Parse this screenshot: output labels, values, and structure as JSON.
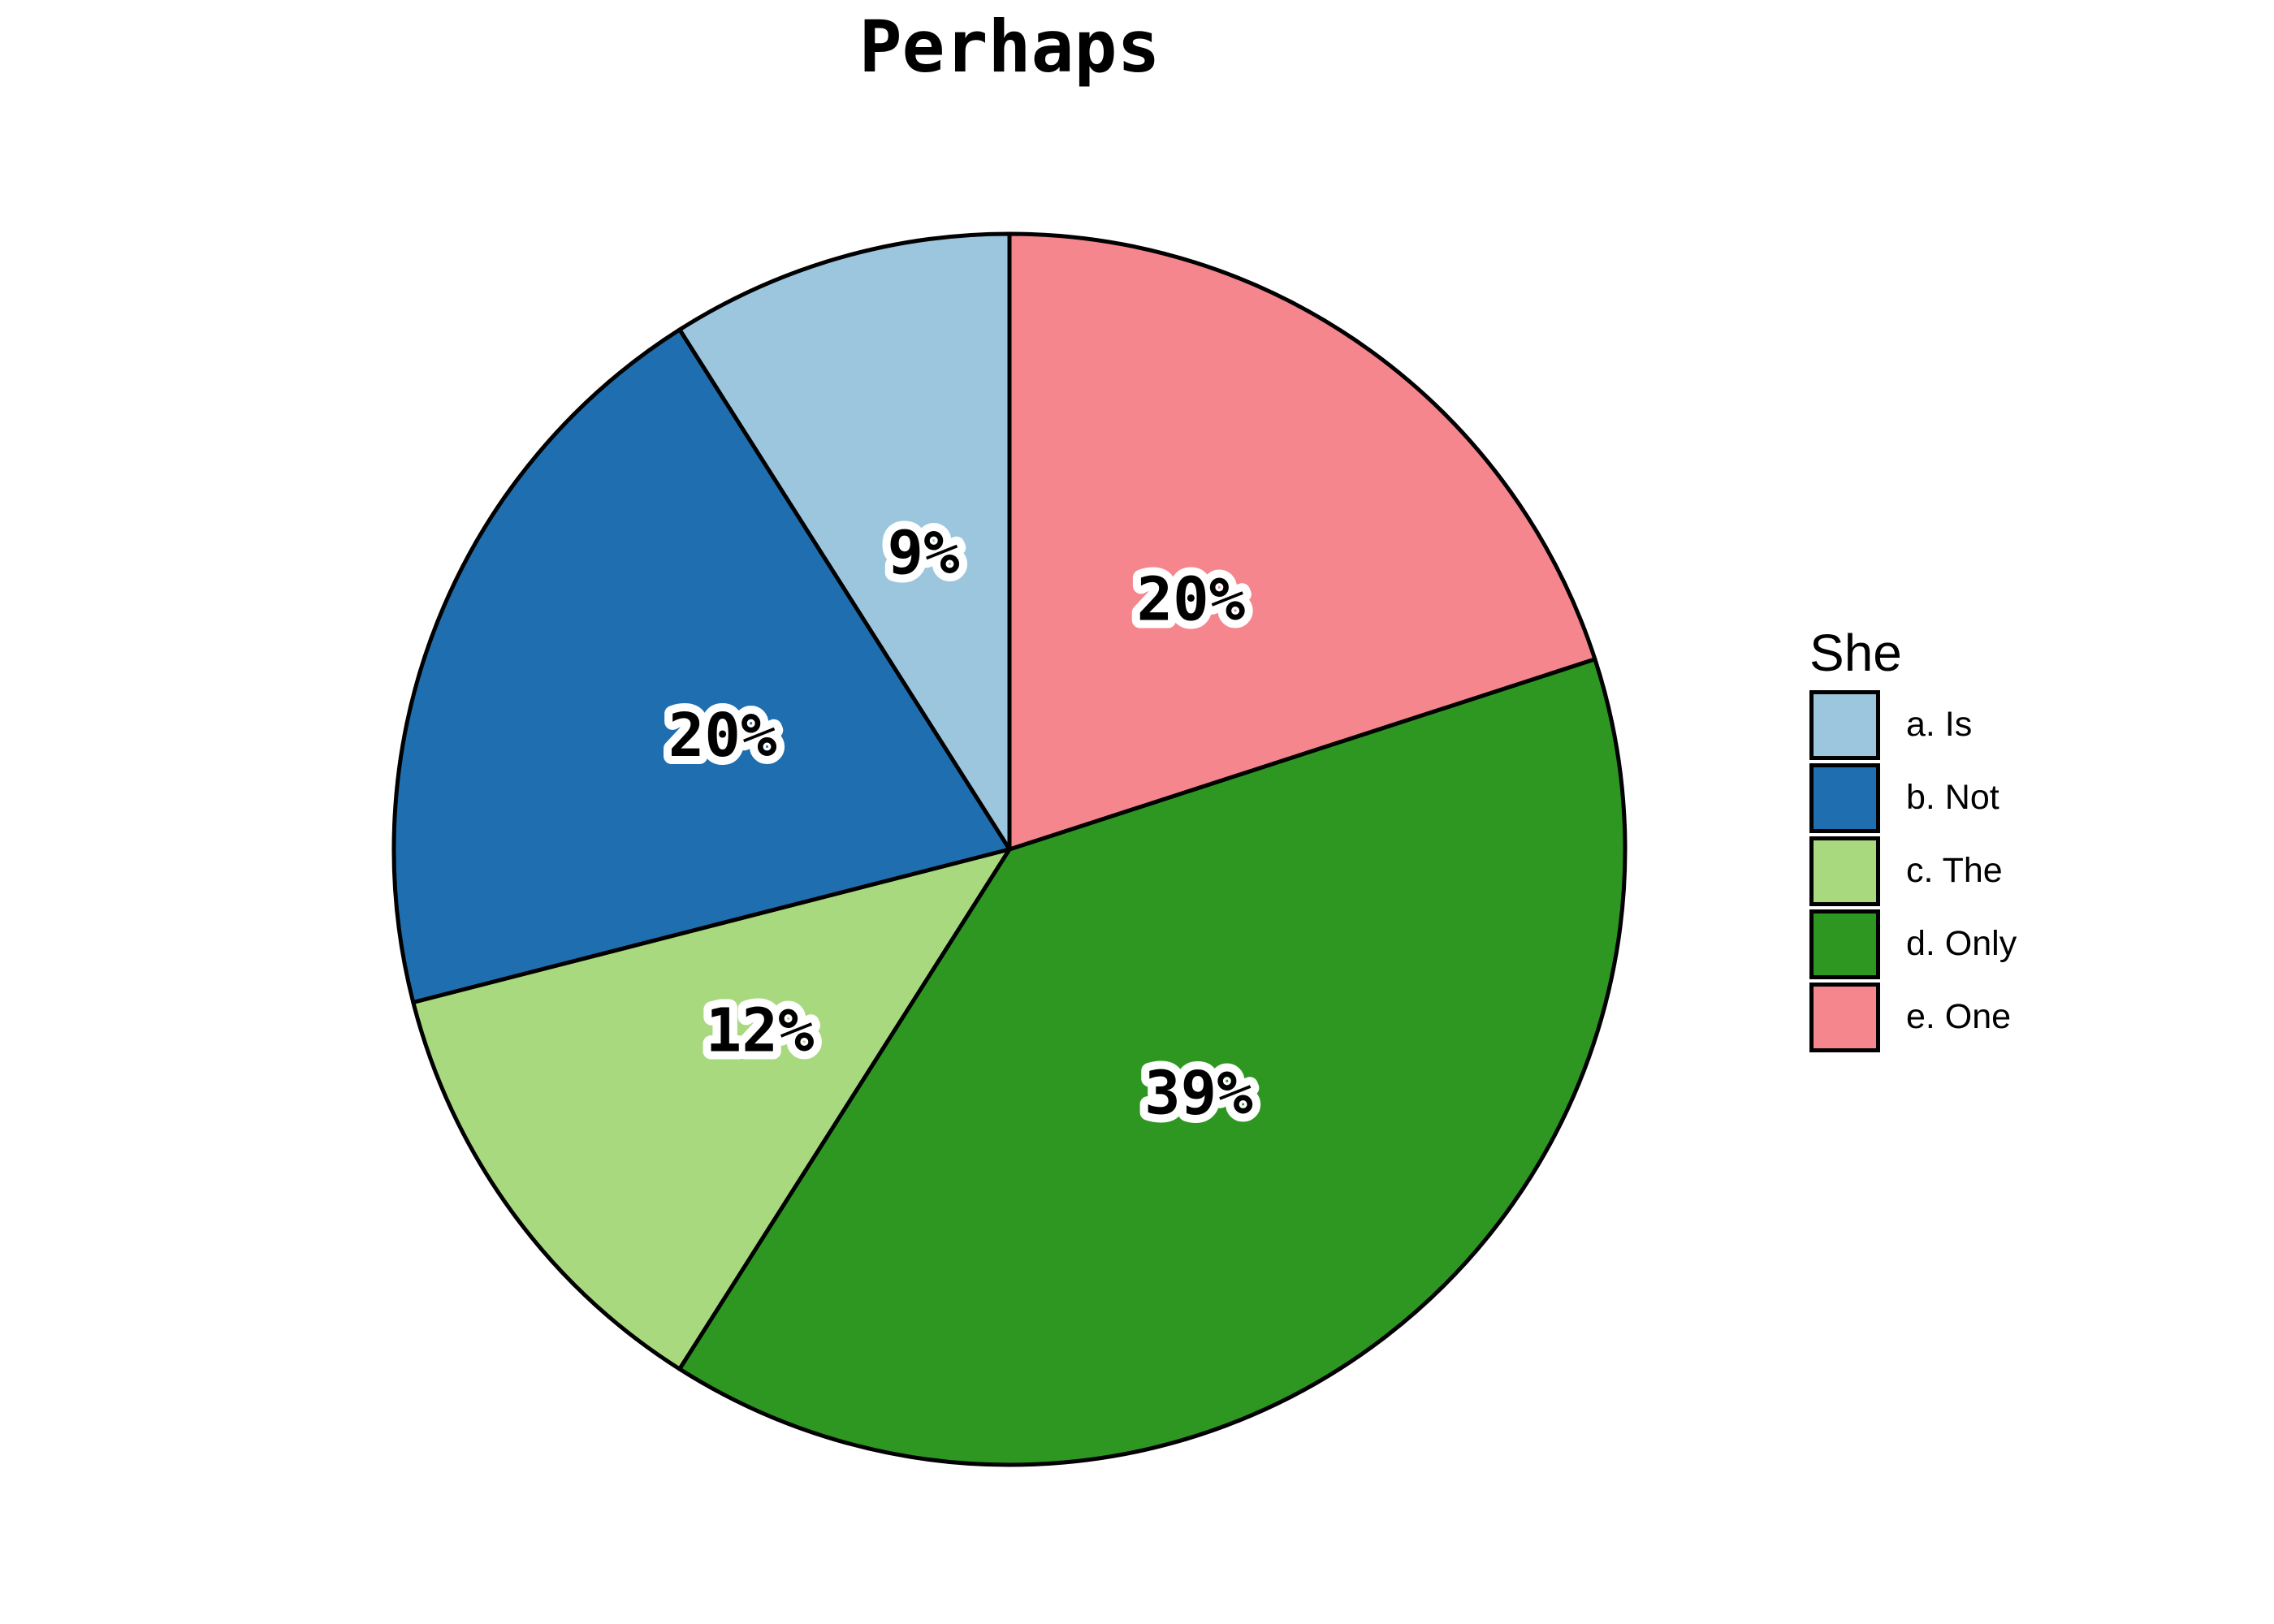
{
  "chart_data": {
    "type": "pie",
    "title": "Perhaps",
    "legend_title": "She",
    "legend_position": "right",
    "start": "12-o'clock",
    "winding": "counterclockwise",
    "background_color": "#FFFFFF",
    "slice_border_color": "#000000",
    "slice_label_color": "#000000",
    "slice_label_outline_color": "#FFFFFF",
    "slices": [
      {
        "legend_label": "a. Is",
        "value_pct": 9,
        "slice_label": "9%",
        "color": "#9CC6DE"
      },
      {
        "legend_label": "b. Not",
        "value_pct": 20,
        "slice_label": "20%",
        "color": "#1F6FB0"
      },
      {
        "legend_label": "c. The",
        "value_pct": 12,
        "slice_label": "12%",
        "color": "#A9D97E"
      },
      {
        "legend_label": "d. Only",
        "value_pct": 39,
        "slice_label": "39%",
        "color": "#2E9722"
      },
      {
        "legend_label": "e. One",
        "value_pct": 20,
        "slice_label": "20%",
        "color": "#F5868E"
      }
    ]
  }
}
